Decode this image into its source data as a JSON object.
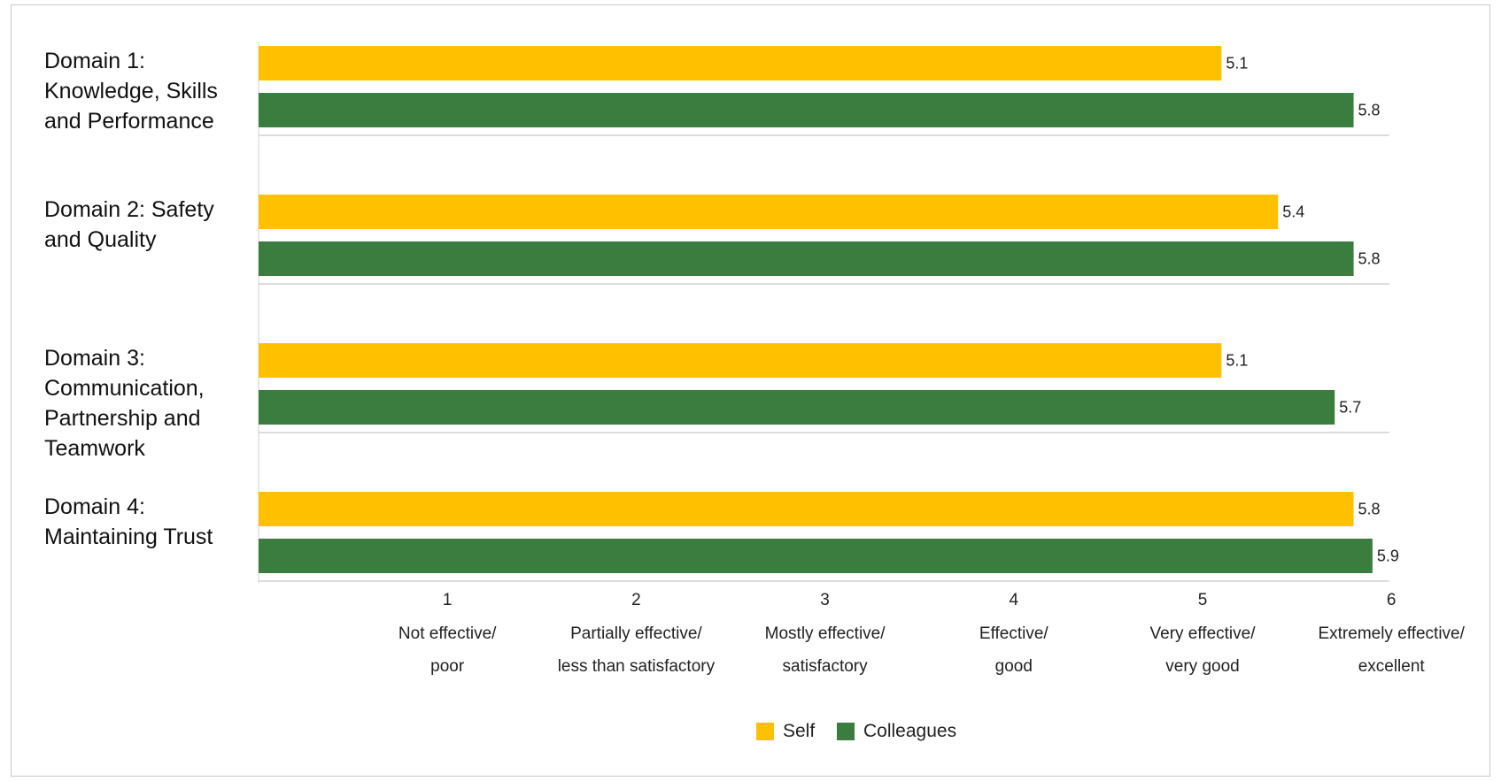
{
  "chart_data": {
    "type": "bar",
    "orientation": "horizontal",
    "categories": [
      [
        "Domain 1:",
        "Knowledge, Skills",
        "and Performance"
      ],
      [
        "Domain 2: Safety",
        "and Quality"
      ],
      [
        "Domain 3:",
        "Communication,",
        "Partnership and",
        "Teamwork"
      ],
      [
        "Domain 4:",
        "Maintaining Trust"
      ]
    ],
    "series": [
      {
        "name": "Self",
        "color": "#FFC000",
        "values": [
          5.1,
          5.4,
          5.1,
          5.8
        ]
      },
      {
        "name": "Colleagues",
        "color": "#3A7D3F",
        "values": [
          5.8,
          5.8,
          5.7,
          5.9
        ]
      }
    ],
    "xlim": [
      0,
      6
    ],
    "xticks": [
      {
        "value": 1,
        "label": [
          "Not effective/",
          "poor"
        ]
      },
      {
        "value": 2,
        "label": [
          "Partially effective/",
          "less than satisfactory"
        ]
      },
      {
        "value": 3,
        "label": [
          "Mostly effective/",
          "satisfactory"
        ]
      },
      {
        "value": 4,
        "label": [
          "Effective/",
          "good"
        ]
      },
      {
        "value": 5,
        "label": [
          "Very effective/",
          "very good"
        ]
      },
      {
        "value": 6,
        "label": [
          "Extremely effective/",
          "excellent"
        ]
      }
    ],
    "legend_position": "bottom-center",
    "grid": false
  }
}
